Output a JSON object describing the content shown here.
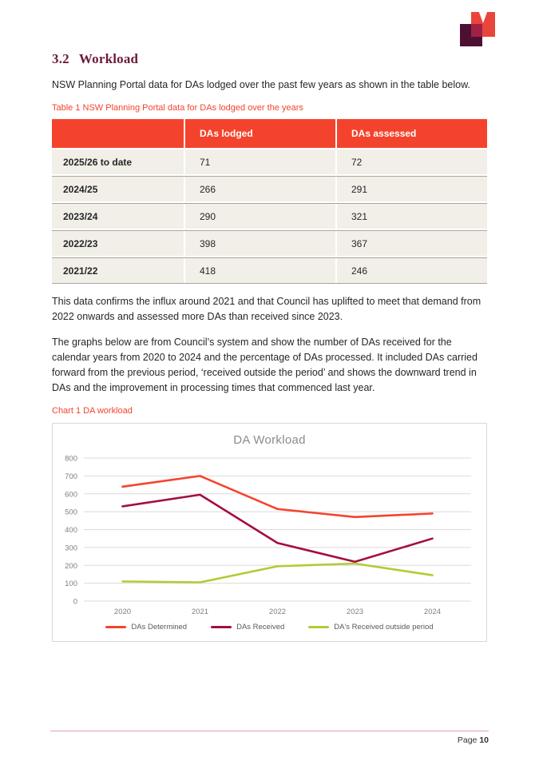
{
  "section": {
    "number": "3.2",
    "title": "Workload"
  },
  "paragraphs": {
    "intro": "NSW Planning Portal data for DAs lodged over the past few years as shown in the table below.",
    "after_table": "This data confirms the influx around 2021 and that Council has uplifted to meet that demand from 2022 onwards and assessed more DAs than received since 2023.",
    "graphs_intro": "The graphs below are from Council’s system and show the number of DAs received for the calendar years from 2020 to 2024 and the percentage of DAs processed. It included DAs carried forward from the previous period, ‘received outside the period’ and  shows the downward trend in DAs and the improvement in processing times that commenced last year."
  },
  "table": {
    "caption": "Table 1 NSW Planning Portal data for DAs lodged over the years",
    "columns": [
      "",
      "DAs lodged",
      "DAs assessed"
    ],
    "rows": [
      {
        "period": "2025/26 to date",
        "lodged": "71",
        "assessed": "72"
      },
      {
        "period": "2024/25",
        "lodged": "266",
        "assessed": "291"
      },
      {
        "period": "2023/24",
        "lodged": "290",
        "assessed": "321"
      },
      {
        "period": "2022/23",
        "lodged": "398",
        "assessed": "367"
      },
      {
        "period": "2021/22",
        "lodged": "418",
        "assessed": "246"
      }
    ]
  },
  "chart": {
    "caption": "Chart 1 DA workload"
  },
  "chart_data": {
    "type": "line",
    "title": "DA Workload",
    "categories": [
      "2020",
      "2021",
      "2022",
      "2023",
      "2024"
    ],
    "series": [
      {
        "name": "DAs Determined",
        "color": "#F5432E",
        "values": [
          640,
          700,
          515,
          470,
          490
        ]
      },
      {
        "name": "DAs Received",
        "color": "#A50D40",
        "values": [
          530,
          595,
          325,
          220,
          350
        ]
      },
      {
        "name": "DA's Received outside period",
        "color": "#B2CB33",
        "values": [
          110,
          105,
          195,
          210,
          145
        ]
      }
    ],
    "ylim": [
      0,
      800
    ],
    "ytick_step": 100,
    "grid": "horizontal",
    "legend_position": "bottom"
  },
  "footer": {
    "page_label": "Page",
    "page_number": "10"
  },
  "colors": {
    "accent_red": "#F4432C",
    "heading_maroon": "#6B1B3C",
    "table_row_bg": "#F2EFE9",
    "gridline_gray": "#DBDBDB",
    "axis_label_gray": "#7F7F7F",
    "footer_rule_pink": "#E7A0B5",
    "logo_red": "#E8463C",
    "logo_dark": "#4C1132",
    "logo_overlap": "#A02144"
  }
}
